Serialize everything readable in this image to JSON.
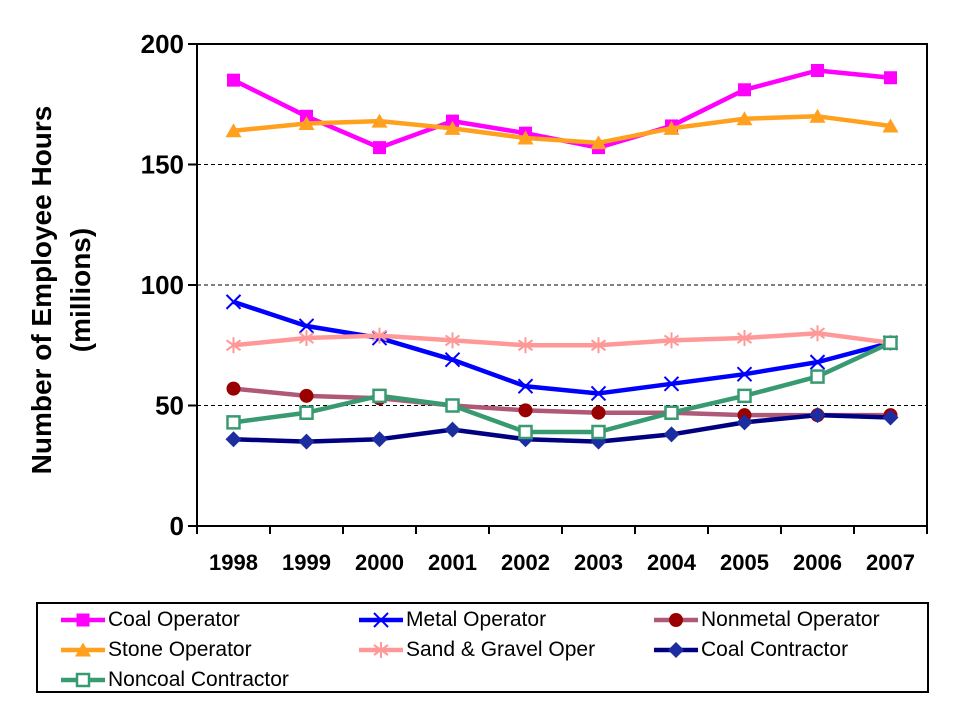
{
  "chart_data": {
    "type": "line",
    "title": "",
    "ylabel_line1": "Number of Employee Hours",
    "ylabel_line2": "(millions)",
    "xlabel": "",
    "categories": [
      "1998",
      "1999",
      "2000",
      "2001",
      "2002",
      "2003",
      "2004",
      "2005",
      "2006",
      "2007"
    ],
    "y_ticks": [
      0,
      50,
      100,
      150,
      200
    ],
    "ylim": [
      0,
      200
    ],
    "grid": "horizontal-dashed",
    "legend_position": "bottom",
    "axis_color": "#000000",
    "background_color": "#ffffff",
    "series": [
      {
        "name": "Coal Operator",
        "color": "#FF00FF",
        "marker": "square",
        "marker_color": "#FF00FF",
        "values": [
          185,
          170,
          157,
          168,
          163,
          157,
          166,
          181,
          189,
          186
        ]
      },
      {
        "name": "Metal Operator",
        "color": "#0000FF",
        "marker": "x",
        "marker_color": "#0000FF",
        "values": [
          93,
          83,
          78,
          69,
          58,
          55,
          59,
          63,
          68,
          76
        ]
      },
      {
        "name": "Nonmetal Operator",
        "color": "#B05878",
        "marker": "circle",
        "marker_color": "#990000",
        "values": [
          57,
          54,
          53,
          50,
          48,
          47,
          47,
          46,
          46,
          46
        ]
      },
      {
        "name": "Stone Operator",
        "color": "#FFA01E",
        "marker": "triangle",
        "marker_color": "#FFA01E",
        "values": [
          164,
          167,
          168,
          165,
          161,
          159,
          165,
          169,
          170,
          166
        ]
      },
      {
        "name": "Sand & Gravel Oper",
        "color": "#FF9999",
        "marker": "asterisk",
        "marker_color": "#FF9999",
        "values": [
          75,
          78,
          79,
          77,
          75,
          75,
          77,
          78,
          80,
          76
        ]
      },
      {
        "name": "Coal Contractor",
        "color": "#000080",
        "marker": "diamond",
        "marker_color": "#1C2DA0",
        "values": [
          36,
          35,
          36,
          40,
          36,
          35,
          38,
          43,
          46,
          45
        ]
      },
      {
        "name": "Noncoal Contractor",
        "color": "#389A70",
        "marker": "square-open",
        "marker_color": "#389A70",
        "values": [
          43,
          47,
          54,
          50,
          39,
          39,
          47,
          54,
          62,
          76
        ]
      }
    ]
  }
}
